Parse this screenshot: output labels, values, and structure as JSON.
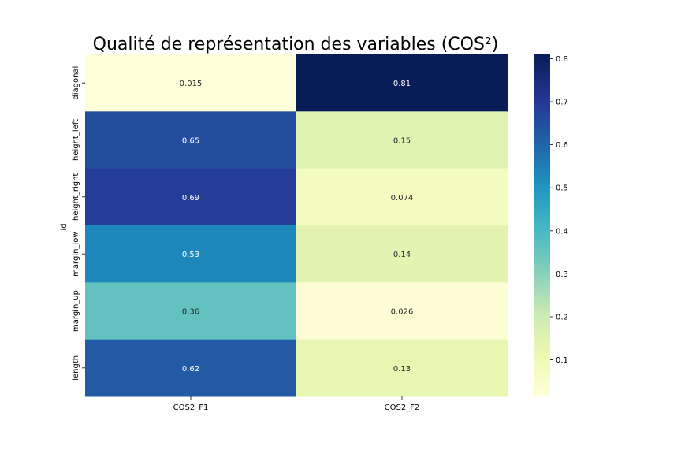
{
  "chart_data": {
    "type": "heatmap",
    "title": "Qualité de représentation des variables (COS²)",
    "xlabel": "",
    "ylabel": "id",
    "x_categories": [
      "COS2_F1",
      "COS2_F2"
    ],
    "y_categories": [
      "diagonal",
      "height_left",
      "height_right",
      "margin_low",
      "margin_up",
      "length"
    ],
    "values": [
      [
        0.015,
        0.81
      ],
      [
        0.65,
        0.15
      ],
      [
        0.69,
        0.074
      ],
      [
        0.53,
        0.14
      ],
      [
        0.36,
        0.026
      ],
      [
        0.62,
        0.13
      ]
    ],
    "value_labels": [
      [
        "0.015",
        "0.81"
      ],
      [
        "0.65",
        "0.15"
      ],
      [
        "0.69",
        "0.074"
      ],
      [
        "0.53",
        "0.14"
      ],
      [
        "0.36",
        "0.026"
      ],
      [
        "0.62",
        "0.13"
      ]
    ],
    "colormap": "YlGnBu",
    "vmin": 0.015,
    "vmax": 0.81,
    "colorbar_ticks": [
      0.1,
      0.2,
      0.3,
      0.4,
      0.5,
      0.6,
      0.7,
      0.8
    ],
    "colorbar_tick_labels": [
      "0.1",
      "0.2",
      "0.3",
      "0.4",
      "0.5",
      "0.6",
      "0.7",
      "0.8"
    ]
  }
}
